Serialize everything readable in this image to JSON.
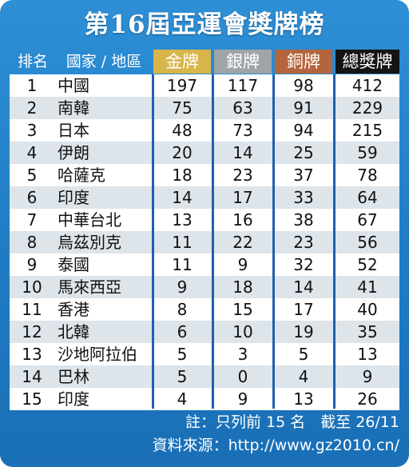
{
  "title": "第16屆亞運會獎牌榜",
  "headers": {
    "rank": "排名",
    "country": "國家 / 地區",
    "gold": "金牌",
    "silver": "銀牌",
    "bronze": "銅牌",
    "total": "總獎牌"
  },
  "colors": {
    "background": "#1f7cc4",
    "gold": "#d8b54a",
    "silver": "#9fa4a8",
    "bronze": "#b5653d",
    "total": "#141414"
  },
  "rows": [
    {
      "rank": "1",
      "country": "中國",
      "gold": "197",
      "silver": "117",
      "bronze": "98",
      "total": "412"
    },
    {
      "rank": "2",
      "country": "南韓",
      "gold": "75",
      "silver": "63",
      "bronze": "91",
      "total": "229"
    },
    {
      "rank": "3",
      "country": "日本",
      "gold": "48",
      "silver": "73",
      "bronze": "94",
      "total": "215"
    },
    {
      "rank": "4",
      "country": "伊朗",
      "gold": "20",
      "silver": "14",
      "bronze": "25",
      "total": "59"
    },
    {
      "rank": "5",
      "country": "哈薩克",
      "gold": "18",
      "silver": "23",
      "bronze": "37",
      "total": "78"
    },
    {
      "rank": "6",
      "country": "印度",
      "gold": "14",
      "silver": "17",
      "bronze": "33",
      "total": "64"
    },
    {
      "rank": "7",
      "country": "中華台北",
      "gold": "13",
      "silver": "16",
      "bronze": "38",
      "total": "67"
    },
    {
      "rank": "8",
      "country": "烏茲別克",
      "gold": "11",
      "silver": "22",
      "bronze": "23",
      "total": "56"
    },
    {
      "rank": "9",
      "country": "泰國",
      "gold": "11",
      "silver": "9",
      "bronze": "32",
      "total": "52"
    },
    {
      "rank": "10",
      "country": "馬來西亞",
      "gold": "9",
      "silver": "18",
      "bronze": "14",
      "total": "41"
    },
    {
      "rank": "11",
      "country": "香港",
      "gold": "8",
      "silver": "15",
      "bronze": "17",
      "total": "40"
    },
    {
      "rank": "12",
      "country": "北韓",
      "gold": "6",
      "silver": "10",
      "bronze": "19",
      "total": "35"
    },
    {
      "rank": "13",
      "country": "沙地阿拉伯",
      "gold": "5",
      "silver": "3",
      "bronze": "5",
      "total": "13"
    },
    {
      "rank": "14",
      "country": "巴林",
      "gold": "5",
      "silver": "0",
      "bronze": "4",
      "total": "9"
    },
    {
      "rank": "15",
      "country": "印度",
      "gold": "4",
      "silver": "9",
      "bronze": "13",
      "total": "26"
    }
  ],
  "footer": {
    "note": "註：只列前 15 名　截至 26/11",
    "source": "資料來源：http://www.gz2010.cn/"
  }
}
